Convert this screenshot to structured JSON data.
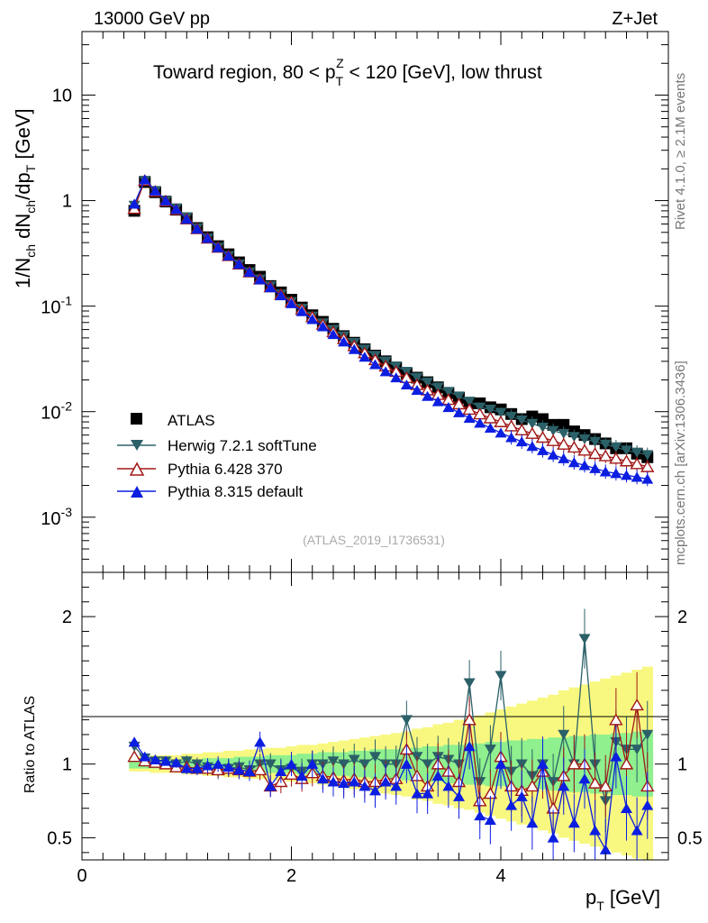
{
  "header": {
    "energy": "13000 GeV pp",
    "process": "Z+Jet",
    "ref": "(ATLAS_2019_I1736531)",
    "side_top": "Rivet 4.1.0, ≥ 2.1M events",
    "side_bottom": "mcplots.cern.ch [arXiv:1306.3436]"
  },
  "title": {
    "pre": "Toward region, 80 < p",
    "sup": "Z",
    "sub": "T",
    "post": " < 120 [GeV], low thrust"
  },
  "axes": {
    "ylabel_main": "1/N_ch dN_ch/dp_T [GeV]",
    "ylabel_ratio": "Ratio to ATLAS",
    "xlabel": "p_T [GeV]",
    "xlabel_parts": {
      "p": "p",
      "sub": "T",
      "rest": " [GeV]"
    },
    "ylabel_parts": {
      "a": "1/N",
      "ch1": "ch",
      "b": " dN",
      "ch2": "ch",
      "c": "/dp",
      "t": "T",
      "d": " [GeV]"
    }
  },
  "colors": {
    "atlas": "#000000",
    "herwig": "#2b6068",
    "py6": "#a01818",
    "py8": "#0c1ee0",
    "band_green": "#8ef08e",
    "band_yellow": "#f8f880"
  },
  "chart_data": {
    "type": "scatter",
    "title": "Toward region, 80 < pT^Z < 120 [GeV], low thrust",
    "xlabel": "pT [GeV]",
    "ylabel": "1/Nch dNch/dpT [GeV]",
    "xlim": [
      0,
      5.6
    ],
    "ylim": [
      0.0003,
      40
    ],
    "yscale": "log",
    "ratio_ylim": [
      0.35,
      2.3
    ],
    "ratio_ylabel": "Ratio to ATLAS",
    "x": [
      0.5,
      0.6,
      0.7,
      0.8,
      0.9,
      1.0,
      1.1,
      1.2,
      1.3,
      1.4,
      1.5,
      1.6,
      1.7,
      1.8,
      1.9,
      2.0,
      2.1,
      2.2,
      2.3,
      2.4,
      2.5,
      2.6,
      2.7,
      2.8,
      2.9,
      3.0,
      3.1,
      3.2,
      3.3,
      3.4,
      3.5,
      3.6,
      3.7,
      3.8,
      3.9,
      4.0,
      4.1,
      4.2,
      4.3,
      4.4,
      4.5,
      4.6,
      4.7,
      4.8,
      4.9,
      5.0,
      5.1,
      5.2,
      5.3,
      5.4
    ],
    "x_ticks": [
      "0",
      "2",
      "4"
    ],
    "y_ticks": [
      "10",
      "1",
      "10^-1",
      "10^-2",
      "10^-3"
    ],
    "ratio_ticks": [
      "2",
      "1",
      "0.5"
    ],
    "legend": [
      "ATLAS",
      "Herwig 7.2.1 softTune",
      "Pythia 6.428 370",
      "Pythia 8.315 default"
    ],
    "legend_position": "lower-left",
    "series": [
      {
        "name": "ATLAS",
        "marker": "square",
        "values": [
          0.8,
          1.5,
          1.2,
          0.98,
          0.82,
          0.68,
          0.55,
          0.45,
          0.37,
          0.31,
          0.26,
          0.22,
          0.19,
          0.155,
          0.135,
          0.115,
          0.097,
          0.082,
          0.071,
          0.061,
          0.052,
          0.045,
          0.039,
          0.034,
          0.03,
          0.026,
          0.023,
          0.021,
          0.019,
          0.017,
          0.015,
          0.0135,
          0.012,
          0.012,
          0.011,
          0.0105,
          0.0095,
          0.0085,
          0.009,
          0.0085,
          0.0075,
          0.0075,
          0.0065,
          0.006,
          0.0055,
          0.005,
          0.0045,
          0.0045,
          0.004,
          0.0037
        ]
      },
      {
        "name": "Herwig 7.2.1 softTune",
        "marker": "triangle-down",
        "values": [
          0.9,
          1.55,
          1.24,
          1.0,
          0.85,
          0.7,
          0.55,
          0.44,
          0.36,
          0.3,
          0.25,
          0.21,
          0.18,
          0.155,
          0.13,
          0.11,
          0.095,
          0.08,
          0.069,
          0.06,
          0.052,
          0.045,
          0.039,
          0.034,
          0.03,
          0.027,
          0.024,
          0.021,
          0.019,
          0.017,
          0.0155,
          0.014,
          0.0125,
          0.011,
          0.0105,
          0.0098,
          0.009,
          0.0083,
          0.0077,
          0.0071,
          0.0066,
          0.0062,
          0.0058,
          0.0055,
          0.0052,
          0.0049,
          0.0046,
          0.0043,
          0.0041,
          0.0039
        ]
      },
      {
        "name": "Pythia 6.428 370",
        "marker": "triangle-up-open",
        "values": [
          0.84,
          1.55,
          1.22,
          0.99,
          0.82,
          0.67,
          0.54,
          0.44,
          0.36,
          0.3,
          0.25,
          0.21,
          0.18,
          0.152,
          0.129,
          0.11,
          0.093,
          0.079,
          0.067,
          0.057,
          0.049,
          0.042,
          0.036,
          0.031,
          0.027,
          0.024,
          0.021,
          0.018,
          0.016,
          0.0145,
          0.013,
          0.0118,
          0.0105,
          0.0095,
          0.0087,
          0.008,
          0.0073,
          0.0067,
          0.0062,
          0.0057,
          0.0053,
          0.0049,
          0.0046,
          0.0043,
          0.004,
          0.0038,
          0.0036,
          0.0034,
          0.0032,
          0.003
        ]
      },
      {
        "name": "Pythia 8.315 default",
        "marker": "triangle-up",
        "values": [
          0.93,
          1.58,
          1.24,
          1.0,
          0.83,
          0.67,
          0.54,
          0.44,
          0.36,
          0.3,
          0.25,
          0.21,
          0.178,
          0.15,
          0.126,
          0.106,
          0.089,
          0.075,
          0.064,
          0.054,
          0.046,
          0.039,
          0.033,
          0.028,
          0.024,
          0.021,
          0.018,
          0.016,
          0.014,
          0.0125,
          0.011,
          0.0098,
          0.0087,
          0.0078,
          0.007,
          0.0063,
          0.0057,
          0.0052,
          0.0047,
          0.0043,
          0.0039,
          0.0036,
          0.0033,
          0.0031,
          0.0029,
          0.0027,
          0.0026,
          0.0025,
          0.0024,
          0.0023
        ]
      }
    ],
    "ratios": {
      "Herwig 7.2.1 softTune": [
        1.12,
        1.04,
        1.02,
        1.02,
        1.0,
        1.02,
        1.0,
        0.98,
        0.95,
        0.97,
        0.98,
        0.96,
        1.0,
        1.0,
        0.96,
        0.97,
        0.95,
        1.0,
        1.0,
        1.02,
        1.0,
        1.03,
        1.0,
        1.05,
        1.0,
        1.0,
        1.3,
        1.05,
        1.0,
        1.05,
        1.03,
        1.0,
        1.55,
        0.88,
        1.1,
        1.6,
        0.95,
        1.0,
        0.92,
        1.0,
        0.88,
        1.2,
        1.0,
        1.85,
        1.0,
        0.75,
        1.15,
        1.1,
        1.1,
        1.2
      ],
      "Pythia 6.428 370": [
        1.05,
        1.02,
        1.01,
        1.0,
        0.98,
        0.98,
        0.97,
        0.97,
        0.96,
        0.97,
        0.96,
        0.95,
        0.96,
        0.85,
        0.88,
        0.93,
        0.9,
        0.94,
        0.92,
        0.91,
        0.89,
        0.9,
        0.88,
        0.88,
        0.9,
        0.9,
        1.1,
        0.92,
        0.85,
        1.0,
        0.95,
        0.88,
        1.3,
        0.75,
        0.8,
        1.05,
        0.85,
        0.82,
        0.85,
        0.95,
        0.7,
        0.92,
        1.0,
        1.0,
        0.87,
        0.85,
        1.3,
        1.0,
        1.4,
        0.85
      ],
      "Pythia 8.315 default": [
        1.15,
        1.05,
        1.03,
        1.02,
        1.01,
        0.97,
        0.97,
        0.99,
        1.0,
        0.98,
        0.96,
        0.95,
        1.15,
        0.85,
        0.95,
        1.0,
        0.92,
        1.0,
        0.9,
        0.88,
        0.87,
        0.88,
        0.85,
        0.82,
        0.88,
        0.85,
        1.0,
        0.8,
        0.8,
        0.92,
        0.85,
        0.78,
        1.12,
        0.65,
        0.62,
        1.0,
        0.72,
        0.78,
        0.6,
        1.0,
        0.5,
        0.85,
        0.6,
        0.9,
        0.55,
        0.42,
        1.05,
        0.7,
        0.55,
        0.72
      ]
    },
    "uncertainty_bands": {
      "green_halfwidth": [
        0.03,
        0.03,
        0.03,
        0.03,
        0.03,
        0.03,
        0.03,
        0.04,
        0.04,
        0.04,
        0.05,
        0.05,
        0.05,
        0.06,
        0.06,
        0.06,
        0.07,
        0.07,
        0.08,
        0.08,
        0.08,
        0.09,
        0.09,
        0.1,
        0.1,
        0.1,
        0.11,
        0.11,
        0.12,
        0.12,
        0.13,
        0.13,
        0.14,
        0.14,
        0.15,
        0.15,
        0.16,
        0.16,
        0.17,
        0.17,
        0.18,
        0.18,
        0.19,
        0.19,
        0.2,
        0.2,
        0.21,
        0.21,
        0.22,
        0.22
      ],
      "yellow_halfwidth": [
        0.05,
        0.05,
        0.06,
        0.06,
        0.06,
        0.07,
        0.07,
        0.08,
        0.08,
        0.09,
        0.09,
        0.1,
        0.1,
        0.11,
        0.11,
        0.12,
        0.13,
        0.13,
        0.14,
        0.15,
        0.16,
        0.17,
        0.18,
        0.19,
        0.2,
        0.21,
        0.22,
        0.24,
        0.25,
        0.27,
        0.28,
        0.3,
        0.31,
        0.33,
        0.35,
        0.37,
        0.39,
        0.41,
        0.43,
        0.45,
        0.47,
        0.5,
        0.52,
        0.54,
        0.56,
        0.58,
        0.6,
        0.62,
        0.64,
        0.66
      ]
    }
  }
}
